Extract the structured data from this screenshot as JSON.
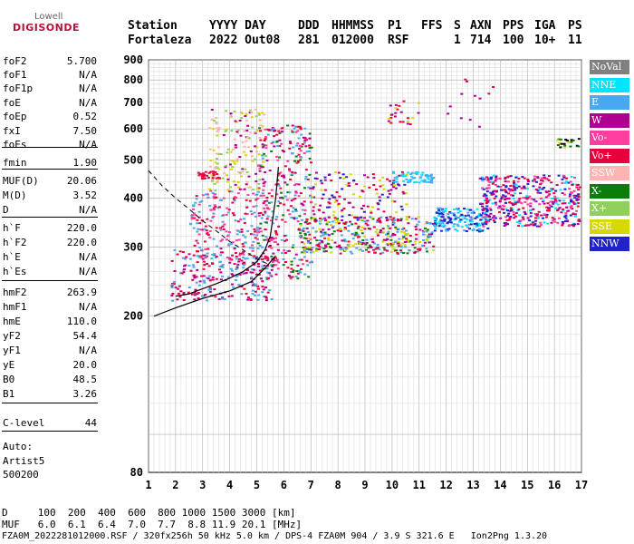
{
  "logo": {
    "line1": "Lowell",
    "line2": "DIGISONDE"
  },
  "header": {
    "cols": [
      "Station",
      "YYYY DAY",
      "DDD",
      "HHMMSS",
      "P1",
      "FFS",
      "S",
      "AXN",
      "PPS",
      "IGA",
      "PS"
    ],
    "vals": [
      "Fortaleza",
      "2022 Out08",
      "281",
      "012000",
      "RSF",
      "",
      "1",
      "714",
      "100",
      "10+",
      "11"
    ]
  },
  "params": [
    {
      "label": "foF2",
      "value": "5.700"
    },
    {
      "label": "foF1",
      "value": "N/A"
    },
    {
      "label": "foF1p",
      "value": "N/A"
    },
    {
      "label": "foE",
      "value": "N/A"
    },
    {
      "label": "foEp",
      "value": "0.52"
    },
    {
      "label": "fxI",
      "value": "7.50"
    },
    {
      "label": "foEs",
      "value": "N/A"
    },
    {
      "label": "fmin",
      "value": "1.90"
    },
    {
      "label": "MUF(D)",
      "value": "20.06"
    },
    {
      "label": "M(D)",
      "value": "3.52"
    },
    {
      "label": "D",
      "value": "N/A"
    },
    {
      "label": "h`F",
      "value": "220.0"
    },
    {
      "label": "h`F2",
      "value": "220.0"
    },
    {
      "label": "h`E",
      "value": "N/A"
    },
    {
      "label": "h`Es",
      "value": "N/A"
    },
    {
      "label": "hmF2",
      "value": "263.9"
    },
    {
      "label": "hmF1",
      "value": "N/A"
    },
    {
      "label": "hmE",
      "value": "110.0"
    },
    {
      "label": "yF2",
      "value": "54.4"
    },
    {
      "label": "yF1",
      "value": "N/A"
    },
    {
      "label": "yE",
      "value": "20.0"
    },
    {
      "label": "B0",
      "value": "48.5"
    },
    {
      "label": "B1",
      "value": "3.26"
    },
    {
      "label": "C-level",
      "value": "44"
    }
  ],
  "auto": {
    "line1": "Auto:",
    "line2": "Artist5",
    "line3": "500200"
  },
  "bottom": {
    "d_line": "D     100  200  400  600  800 1000 1500 3000 [km]",
    "muf_line": "MUF   6.0  6.1  6.4  7.0  7.7  8.8 11.9 20.1 [MHz]",
    "file_line": "FZA0M_2022281012000.RSF / 320fx256h 50 kHz 5.0 km / DPS-4 FZA0M 904 / 3.9 S 321.6 E   Ion2Png 1.3.20"
  },
  "legend": [
    {
      "label": "NoVal",
      "color": "#808080"
    },
    {
      "label": "NNE",
      "color": "#00e5ff"
    },
    {
      "label": "E",
      "color": "#4aa8f0"
    },
    {
      "label": "W",
      "color": "#b0008f"
    },
    {
      "label": "Vo-",
      "color": "#ff3d9e"
    },
    {
      "label": "Vo+",
      "color": "#e8003c"
    },
    {
      "label": "SSW",
      "color": "#ffb3b3"
    },
    {
      "label": "X-",
      "color": "#0a7d0a"
    },
    {
      "label": "X+",
      "color": "#8fcf5a"
    },
    {
      "label": "SSE",
      "color": "#d8d800"
    },
    {
      "label": "NNW",
      "color": "#2222cc"
    }
  ],
  "chart_data": {
    "type": "scatter",
    "xlabel": "",
    "ylabel": "",
    "xlim": [
      1,
      17
    ],
    "ylim": [
      80,
      900
    ],
    "xticks": [
      1,
      2,
      3,
      4,
      5,
      6,
      7,
      8,
      9,
      10,
      11,
      12,
      13,
      14,
      15,
      16,
      17
    ],
    "yticks": [
      80,
      200,
      300,
      400,
      500,
      600,
      700,
      800,
      900
    ],
    "y_scale": "log",
    "grid": true,
    "profile": {
      "freq": [
        1.2,
        2.0,
        3.0,
        4.0,
        4.8,
        5.3,
        5.7
      ],
      "height": [
        200,
        210,
        222,
        232,
        245,
        265,
        285
      ]
    },
    "trace": {
      "freq": [
        2.0,
        2.5,
        3.0,
        3.5,
        4.0,
        4.5,
        5.0,
        5.3,
        5.5,
        5.7,
        5.8
      ],
      "height": [
        225,
        228,
        235,
        242,
        250,
        260,
        275,
        295,
        320,
        400,
        480
      ]
    },
    "muf_curve": {
      "freq": [
        1.0,
        1.5,
        2.0,
        2.5,
        3.0,
        3.5,
        4.0,
        4.5,
        5.0,
        5.5
      ],
      "height": [
        470,
        430,
        400,
        375,
        350,
        330,
        310,
        295,
        280,
        270
      ]
    },
    "clusters": [
      {
        "f": [
          1.8,
          5.6
        ],
        "h": [
          220,
          300
        ],
        "colors": [
          "#e8003c",
          "#4aa8f0",
          "#b0008f"
        ],
        "density": 260
      },
      {
        "f": [
          2.5,
          5.5
        ],
        "h": [
          280,
          420
        ],
        "colors": [
          "#4aa8f0",
          "#e8003c",
          "#ff3d9e"
        ],
        "density": 220
      },
      {
        "f": [
          3.2,
          5.3
        ],
        "h": [
          420,
          680
        ],
        "colors": [
          "#d8d800",
          "#ffb3b3",
          "#b0008f",
          "#8fcf5a"
        ],
        "density": 170
      },
      {
        "f": [
          5.0,
          7.0
        ],
        "h": [
          250,
          620
        ],
        "colors": [
          "#e8003c",
          "#b0008f",
          "#4aa8f0",
          "#0a7d0a",
          "#ff3d9e"
        ],
        "density": 320
      },
      {
        "f": [
          6.5,
          11.5
        ],
        "h": [
          290,
          360
        ],
        "colors": [
          "#d8d800",
          "#e8003c",
          "#0a7d0a",
          "#b0008f",
          "#4aa8f0"
        ],
        "density": 380
      },
      {
        "f": [
          7.0,
          10.5
        ],
        "h": [
          350,
          470
        ],
        "colors": [
          "#b0008f",
          "#e8003c",
          "#2222cc",
          "#d8d800"
        ],
        "density": 150
      },
      {
        "f": [
          10.0,
          11.5
        ],
        "h": [
          440,
          470
        ],
        "colors": [
          "#00e5ff",
          "#4aa8f0"
        ],
        "density": 60
      },
      {
        "f": [
          11.5,
          13.5
        ],
        "h": [
          330,
          380
        ],
        "colors": [
          "#00e5ff",
          "#4aa8f0",
          "#2222cc"
        ],
        "density": 160
      },
      {
        "f": [
          13.2,
          16.9
        ],
        "h": [
          340,
          460
        ],
        "colors": [
          "#2222cc",
          "#b0008f",
          "#00e5ff",
          "#ff3d9e",
          "#e8003c"
        ],
        "density": 460
      },
      {
        "f": [
          9.8,
          11.0
        ],
        "h": [
          620,
          720
        ],
        "colors": [
          "#b0008f",
          "#e8003c",
          "#d8d800"
        ],
        "density": 25
      },
      {
        "f": [
          12.0,
          13.8
        ],
        "h": [
          600,
          840
        ],
        "colors": [
          "#b0008f",
          "#e8003c"
        ],
        "density": 12
      },
      {
        "f": [
          16.0,
          16.9
        ],
        "h": [
          540,
          570
        ],
        "colors": [
          "#d8d800",
          "#0a7d0a",
          "#000000"
        ],
        "density": 20
      },
      {
        "f": [
          2.8,
          3.6
        ],
        "h": [
          450,
          470
        ],
        "colors": [
          "#e8003c"
        ],
        "density": 30
      }
    ]
  }
}
